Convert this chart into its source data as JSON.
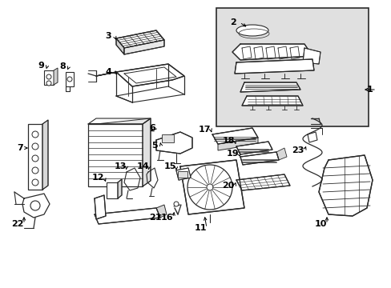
{
  "background_color": "#ffffff",
  "line_color": "#2a2a2a",
  "text_color": "#000000",
  "inset_bg": "#e8e8e8",
  "figsize": [
    4.89,
    3.6
  ],
  "dpi": 100,
  "img_extent": [
    0,
    489,
    0,
    360
  ]
}
